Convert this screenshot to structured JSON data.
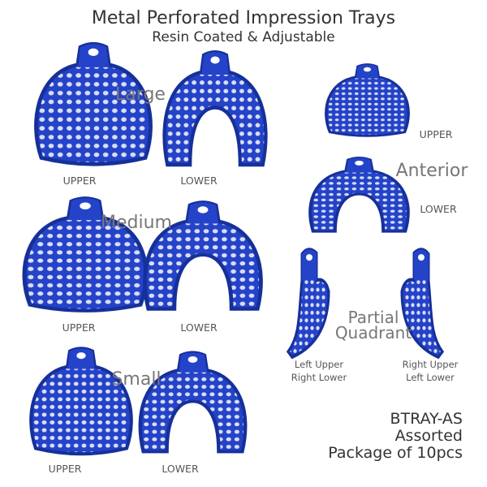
{
  "header": {
    "title": "Metal Perforated Impression Trays",
    "subtitle": "Resin Coated  & Adjustable"
  },
  "colors": {
    "tray_blue": "#2443c9",
    "tray_edge": "#16309a",
    "holes": "#d9def2"
  },
  "groups": {
    "large": {
      "label": "Large",
      "upper": "UPPER",
      "lower": "LOWER"
    },
    "medium": {
      "label": "Medium",
      "upper": "UPPER",
      "lower": "LOWER"
    },
    "small": {
      "label": "Small",
      "upper": "UPPER",
      "lower": "LOWER"
    },
    "anterior": {
      "label": "Anterior",
      "upper": "UPPER",
      "lower": "LOWER"
    },
    "partial": {
      "label_line1": "Partial",
      "label_line2": "Quadrant",
      "left_line1": "Left Upper",
      "left_line2": "Right Lower",
      "right_line1": "Right Upper",
      "right_line2": "Left Lower"
    }
  },
  "product": {
    "sku": "BTRAY-AS",
    "variant": "Assorted",
    "package": "Package of 10pcs"
  }
}
